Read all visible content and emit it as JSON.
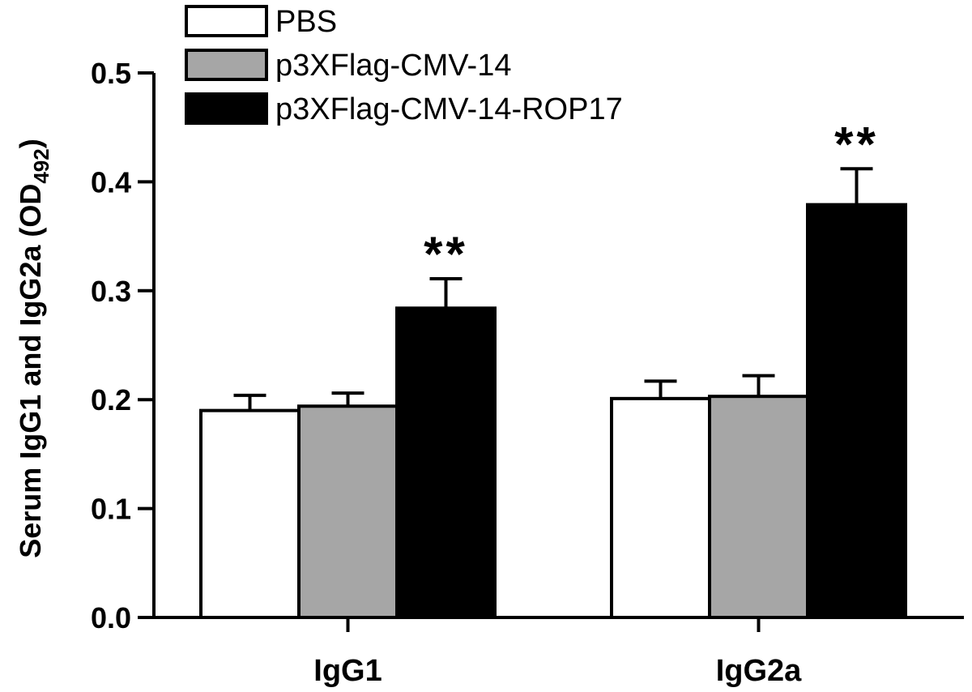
{
  "chart_data": {
    "type": "bar",
    "categories": [
      "IgG1",
      "IgG2a"
    ],
    "series": [
      {
        "name": "PBS",
        "color": "#ffffff",
        "values": [
          0.19,
          0.201
        ],
        "errors": [
          0.014,
          0.016
        ]
      },
      {
        "name": "p3XFlag-CMV-14",
        "color": "#a6a6a6",
        "values": [
          0.194,
          0.203
        ],
        "errors": [
          0.012,
          0.019
        ]
      },
      {
        "name": "p3XFlag-CMV-14-ROP17",
        "color": "#000000",
        "values": [
          0.284,
          0.379
        ],
        "errors": [
          0.027,
          0.033
        ],
        "annotations": [
          "**",
          "**"
        ]
      }
    ],
    "ylabel": "Serum IgG1 and IgG2a (OD",
    "ylabel_sub": "492",
    "ylabel_close": ")",
    "ylim": [
      0,
      0.5
    ],
    "yticks": [
      "0.0",
      "0.1",
      "0.2",
      "0.3",
      "0.4",
      "0.5"
    ],
    "legend": "top-left",
    "grid": false
  }
}
